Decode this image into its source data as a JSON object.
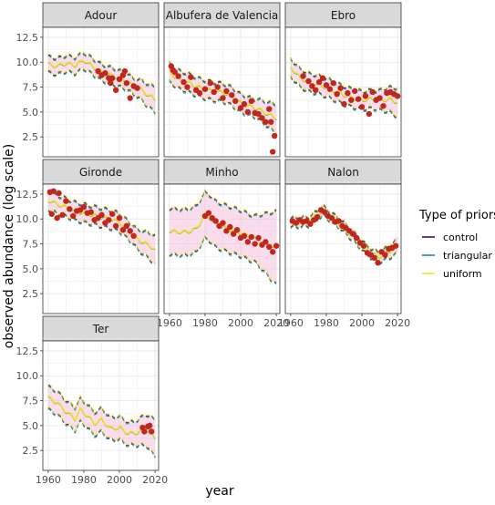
{
  "chart_data": {
    "type": "line",
    "xlabel": "year",
    "ylabel": "observed abundance (log scale)",
    "ylim": [
      0.5,
      13.5
    ],
    "yticks": [
      2.5,
      5.0,
      7.5,
      10.0,
      12.5
    ],
    "yticklabels": [
      "2.5",
      "5.0",
      "7.5",
      "10.0",
      "12.5"
    ],
    "xlim": [
      1957,
      2022
    ],
    "xticks": [
      1960,
      1980,
      2000,
      2020
    ],
    "xticklabels": [
      "1960",
      "1980",
      "2000",
      "2020"
    ],
    "grid": true,
    "legend": {
      "title": "Type of priors",
      "position": "right",
      "entries": [
        {
          "name": "control",
          "color": "#3b0f70"
        },
        {
          "name": "triangular",
          "color": "#21908c"
        },
        {
          "name": "uniform",
          "color": "#f2e51d"
        }
      ]
    },
    "colors": {
      "observed_points": "#c0271f",
      "ribbon": "#f4b3d8",
      "control": "#3b0f70",
      "triangular": "#21908c",
      "uniform": "#f2e51d",
      "strip_background": "#d9d9d9",
      "panel_border": "#333333",
      "gridline": "#ebebeb"
    },
    "panels": [
      {
        "name": "Adour",
        "trend": [
          [
            1960,
            9.8
          ],
          [
            1965,
            9.6
          ],
          [
            1970,
            9.9
          ],
          [
            1975,
            9.7
          ],
          [
            1980,
            10.2
          ],
          [
            1985,
            9.6
          ],
          [
            1990,
            9.0
          ],
          [
            1995,
            8.7
          ],
          [
            2000,
            8.4
          ],
          [
            2005,
            8.0
          ],
          [
            2008,
            7.6
          ],
          [
            2012,
            7.3
          ],
          [
            2016,
            6.7
          ],
          [
            2020,
            6.3
          ]
        ],
        "spread": 0.8,
        "points": [
          [
            1988,
            9.1
          ],
          [
            1990,
            8.7
          ],
          [
            1992,
            8.9
          ],
          [
            1994,
            8.4
          ],
          [
            1995,
            7.9
          ],
          [
            1996,
            8.4
          ],
          [
            1998,
            7.2
          ],
          [
            2000,
            8.3
          ],
          [
            2002,
            8.7
          ],
          [
            2003,
            9.1
          ],
          [
            2004,
            7.9
          ],
          [
            2006,
            6.4
          ],
          [
            2008,
            7.6
          ],
          [
            2010,
            7.4
          ]
        ]
      },
      {
        "name": "Albufera de Valencia",
        "trend": [
          [
            1960,
            9.0
          ],
          [
            1965,
            8.3
          ],
          [
            1970,
            8.0
          ],
          [
            1975,
            7.6
          ],
          [
            1980,
            7.3
          ],
          [
            1985,
            7.1
          ],
          [
            1990,
            7.0
          ],
          [
            1995,
            6.6
          ],
          [
            2000,
            5.9
          ],
          [
            2005,
            5.6
          ],
          [
            2010,
            5.3
          ],
          [
            2015,
            4.8
          ],
          [
            2020,
            4.4
          ]
        ],
        "spread": 0.9,
        "points": [
          [
            1961,
            9.6
          ],
          [
            1962,
            9.2
          ],
          [
            1963,
            9.0
          ],
          [
            1965,
            8.6
          ],
          [
            1968,
            8.0
          ],
          [
            1970,
            7.5
          ],
          [
            1972,
            8.5
          ],
          [
            1975,
            7.2
          ],
          [
            1977,
            6.9
          ],
          [
            1980,
            7.3
          ],
          [
            1983,
            7.9
          ],
          [
            1985,
            7.0
          ],
          [
            1987,
            7.5
          ],
          [
            1990,
            6.4
          ],
          [
            1992,
            7.1
          ],
          [
            1995,
            6.7
          ],
          [
            1997,
            6.1
          ],
          [
            2000,
            5.4
          ],
          [
            2002,
            5.8
          ],
          [
            2004,
            5.0
          ],
          [
            2006,
            6.1
          ],
          [
            2008,
            4.9
          ],
          [
            2010,
            4.8
          ],
          [
            2012,
            4.4
          ],
          [
            2014,
            4.0
          ],
          [
            2016,
            5.3
          ],
          [
            2017,
            4.0
          ],
          [
            2018,
            1.0
          ],
          [
            2019,
            2.6
          ]
        ]
      },
      {
        "name": "Ebro",
        "trend": [
          [
            1960,
            9.5
          ],
          [
            1965,
            8.5
          ],
          [
            1970,
            8.0
          ],
          [
            1975,
            7.8
          ],
          [
            1980,
            7.5
          ],
          [
            1985,
            7.1
          ],
          [
            1990,
            6.7
          ],
          [
            1995,
            6.4
          ],
          [
            2000,
            6.2
          ],
          [
            2005,
            6.3
          ],
          [
            2010,
            6.2
          ],
          [
            2015,
            6.3
          ],
          [
            2020,
            6.0
          ]
        ],
        "spread": 0.9,
        "points": [
          [
            1967,
            8.6
          ],
          [
            1970,
            8.1
          ],
          [
            1972,
            7.6
          ],
          [
            1974,
            7.2
          ],
          [
            1976,
            8.0
          ],
          [
            1978,
            8.4
          ],
          [
            1980,
            7.7
          ],
          [
            1982,
            7.3
          ],
          [
            1984,
            7.9
          ],
          [
            1986,
            6.8
          ],
          [
            1988,
            7.4
          ],
          [
            1990,
            5.8
          ],
          [
            1992,
            6.9
          ],
          [
            1994,
            6.2
          ],
          [
            1996,
            7.1
          ],
          [
            1998,
            6.3
          ],
          [
            2000,
            5.5
          ],
          [
            2002,
            6.6
          ],
          [
            2004,
            4.8
          ],
          [
            2006,
            7.0
          ],
          [
            2008,
            6.2
          ],
          [
            2010,
            6.4
          ],
          [
            2012,
            5.6
          ],
          [
            2014,
            6.9
          ],
          [
            2016,
            7.0
          ],
          [
            2018,
            6.8
          ],
          [
            2020,
            6.6
          ]
        ]
      },
      {
        "name": "Gironde",
        "trend": [
          [
            1960,
            11.9
          ],
          [
            1965,
            11.5
          ],
          [
            1970,
            11.2
          ],
          [
            1975,
            10.8
          ],
          [
            1980,
            10.6
          ],
          [
            1985,
            10.4
          ],
          [
            1990,
            10.2
          ],
          [
            1995,
            10.0
          ],
          [
            2000,
            9.7
          ],
          [
            2003,
            9.2
          ],
          [
            2007,
            8.6
          ],
          [
            2010,
            8.0
          ],
          [
            2014,
            7.6
          ],
          [
            2018,
            7.2
          ],
          [
            2020,
            6.9
          ]
        ],
        "spread": 0.9,
        "points": [
          [
            1961,
            12.7
          ],
          [
            1962,
            10.5
          ],
          [
            1963,
            12.8
          ],
          [
            1965,
            10.1
          ],
          [
            1966,
            12.6
          ],
          [
            1968,
            10.4
          ],
          [
            1970,
            11.8
          ],
          [
            1972,
            11.0
          ],
          [
            1974,
            10.3
          ],
          [
            1976,
            10.8
          ],
          [
            1978,
            10.9
          ],
          [
            1980,
            11.2
          ],
          [
            1982,
            10.6
          ],
          [
            1984,
            10.7
          ],
          [
            1986,
            9.9
          ],
          [
            1988,
            10.1
          ],
          [
            1990,
            10.4
          ],
          [
            1992,
            9.6
          ],
          [
            1994,
            9.9
          ],
          [
            1996,
            10.5
          ],
          [
            1998,
            9.3
          ],
          [
            2000,
            10.1
          ],
          [
            2002,
            8.9
          ],
          [
            2004,
            9.3
          ],
          [
            2006,
            8.8
          ],
          [
            2008,
            8.3
          ]
        ]
      },
      {
        "name": "Minho",
        "trend": [
          [
            1960,
            8.8
          ],
          [
            1965,
            8.7
          ],
          [
            1970,
            8.7
          ],
          [
            1975,
            9.0
          ],
          [
            1980,
            10.4
          ],
          [
            1983,
            10.1
          ],
          [
            1985,
            9.6
          ],
          [
            1990,
            9.2
          ],
          [
            1995,
            8.9
          ],
          [
            2000,
            8.6
          ],
          [
            2005,
            8.2
          ],
          [
            2010,
            7.9
          ],
          [
            2015,
            7.5
          ],
          [
            2020,
            7.1
          ]
        ],
        "spread": 2.3,
        "points": [
          [
            1980,
            10.3
          ],
          [
            1982,
            10.6
          ],
          [
            1984,
            10.1
          ],
          [
            1986,
            9.8
          ],
          [
            1988,
            9.3
          ],
          [
            1990,
            9.6
          ],
          [
            1992,
            8.8
          ],
          [
            1994,
            9.2
          ],
          [
            1996,
            8.5
          ],
          [
            1998,
            8.9
          ],
          [
            2000,
            8.1
          ],
          [
            2002,
            8.3
          ],
          [
            2004,
            7.7
          ],
          [
            2006,
            8.2
          ],
          [
            2008,
            7.5
          ],
          [
            2010,
            8.1
          ],
          [
            2012,
            7.4
          ],
          [
            2014,
            7.7
          ],
          [
            2016,
            7.2
          ],
          [
            2018,
            6.7
          ],
          [
            2020,
            7.3
          ]
        ]
      },
      {
        "name": "Nalon",
        "trend": [
          [
            1960,
            9.7
          ],
          [
            1965,
            9.7
          ],
          [
            1970,
            9.8
          ],
          [
            1975,
            10.4
          ],
          [
            1978,
            10.9
          ],
          [
            1980,
            10.6
          ],
          [
            1985,
            9.9
          ],
          [
            1990,
            9.2
          ],
          [
            1995,
            8.3
          ],
          [
            2000,
            7.4
          ],
          [
            2005,
            6.6
          ],
          [
            2010,
            6.2
          ],
          [
            2015,
            6.7
          ],
          [
            2020,
            7.3
          ]
        ],
        "spread": 0.45,
        "points": [
          [
            1961,
            9.8
          ],
          [
            1963,
            9.6
          ],
          [
            1965,
            9.9
          ],
          [
            1967,
            9.7
          ],
          [
            1969,
            9.8
          ],
          [
            1971,
            9.5
          ],
          [
            1973,
            9.9
          ],
          [
            1975,
            10.2
          ],
          [
            1977,
            10.9
          ],
          [
            1979,
            10.7
          ],
          [
            1981,
            10.3
          ],
          [
            1983,
            10.1
          ],
          [
            1985,
            9.7
          ],
          [
            1987,
            9.8
          ],
          [
            1989,
            9.3
          ],
          [
            1991,
            9.1
          ],
          [
            1993,
            8.8
          ],
          [
            1995,
            8.5
          ],
          [
            1997,
            8.1
          ],
          [
            1999,
            7.6
          ],
          [
            2001,
            7.3
          ],
          [
            2003,
            6.6
          ],
          [
            2005,
            6.4
          ],
          [
            2007,
            6.1
          ],
          [
            2009,
            5.6
          ],
          [
            2011,
            6.7
          ],
          [
            2013,
            6.4
          ],
          [
            2015,
            7.0
          ],
          [
            2017,
            7.1
          ],
          [
            2019,
            7.3
          ]
        ]
      },
      {
        "name": "Ter",
        "trend": [
          [
            1960,
            7.8
          ],
          [
            1965,
            7.3
          ],
          [
            1970,
            6.4
          ],
          [
            1975,
            5.7
          ],
          [
            1978,
            6.6
          ],
          [
            1982,
            6.0
          ],
          [
            1986,
            5.2
          ],
          [
            1990,
            5.6
          ],
          [
            1995,
            4.7
          ],
          [
            2000,
            4.8
          ],
          [
            2005,
            4.2
          ],
          [
            2010,
            4.3
          ],
          [
            2015,
            4.6
          ],
          [
            2020,
            3.8
          ]
        ],
        "spread": 1.15,
        "points": [
          [
            2013,
            4.8
          ],
          [
            2014,
            4.4
          ],
          [
            2016,
            4.9
          ],
          [
            2017,
            5.0
          ],
          [
            2018,
            4.4
          ]
        ]
      }
    ]
  }
}
